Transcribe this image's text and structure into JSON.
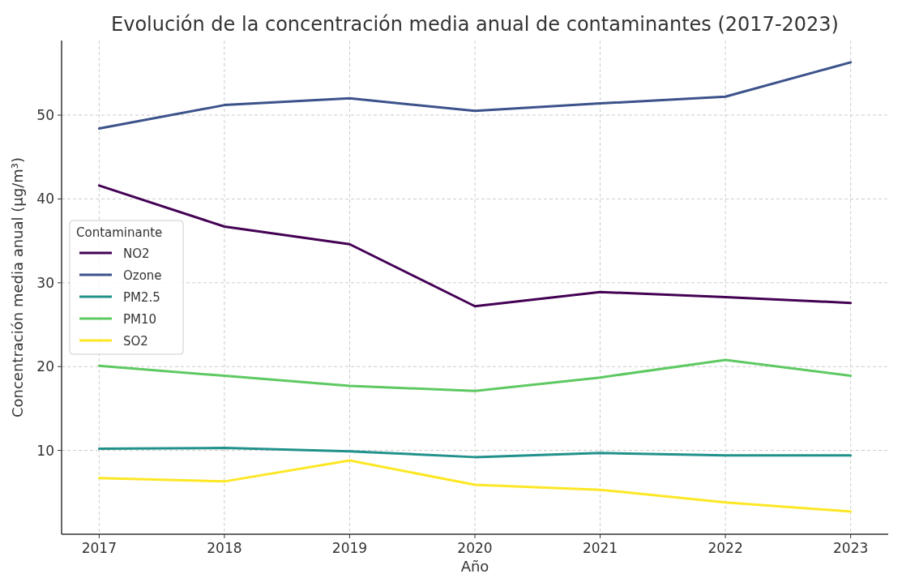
{
  "chart_data": {
    "type": "line",
    "title": "Evolución de la concentración media anual de contaminantes (2017-2023)",
    "xlabel": "Año",
    "ylabel": "Concentración media anual (µg/m³)",
    "legend_title": "Contaminante",
    "x": [
      2017,
      2018,
      2019,
      2020,
      2021,
      2022,
      2023
    ],
    "series": [
      {
        "name": "NO2",
        "color": "#440154",
        "values": [
          41.6,
          36.7,
          34.6,
          27.2,
          28.9,
          28.3,
          27.6
        ]
      },
      {
        "name": "Ozone",
        "color": "#3b528b",
        "values": [
          48.4,
          51.2,
          52.0,
          50.5,
          51.4,
          52.2,
          56.3
        ]
      },
      {
        "name": "PM2.5",
        "color": "#21918c",
        "values": [
          10.2,
          10.3,
          9.9,
          9.2,
          9.7,
          9.4,
          9.4
        ]
      },
      {
        "name": "PM10",
        "color": "#5ec962",
        "values": [
          20.1,
          18.9,
          17.7,
          17.1,
          18.7,
          20.8,
          18.9
        ]
      },
      {
        "name": "SO2",
        "color": "#fde725",
        "values": [
          6.7,
          6.3,
          8.8,
          5.9,
          5.3,
          3.8,
          2.7
        ]
      }
    ],
    "xlim": [
      2016.7,
      2023.3
    ],
    "xticks": [
      2017,
      2018,
      2019,
      2020,
      2021,
      2022,
      2023
    ],
    "ylim": [
      0,
      58.9
    ],
    "yticks": [
      10,
      20,
      30,
      40,
      50
    ],
    "grid": true,
    "legend": "left",
    "marker": "none",
    "line_style": "solid"
  }
}
